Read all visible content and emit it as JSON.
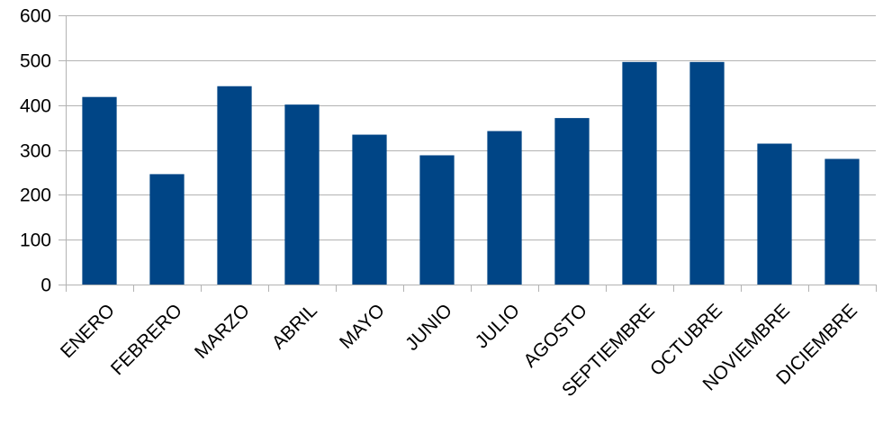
{
  "chart_data": {
    "type": "bar",
    "title": "",
    "xlabel": "",
    "ylabel": "",
    "categories": [
      "ENERO",
      "FEBRERO",
      "MARZO",
      "ABRIL",
      "MAYO",
      "JUNIO",
      "JULIO",
      "AGOSTO",
      "SEPTIEMBRE",
      "OCTUBRE",
      "NOVIEMBRE",
      "DICIEMBRE"
    ],
    "values": [
      418,
      246,
      442,
      401,
      334,
      288,
      342,
      371,
      496,
      496,
      314,
      280
    ],
    "ylim": [
      0,
      600
    ],
    "yticks": [
      0,
      100,
      200,
      300,
      400,
      500,
      600
    ],
    "grid": true,
    "legend": "none",
    "bar_color": "#004586"
  }
}
